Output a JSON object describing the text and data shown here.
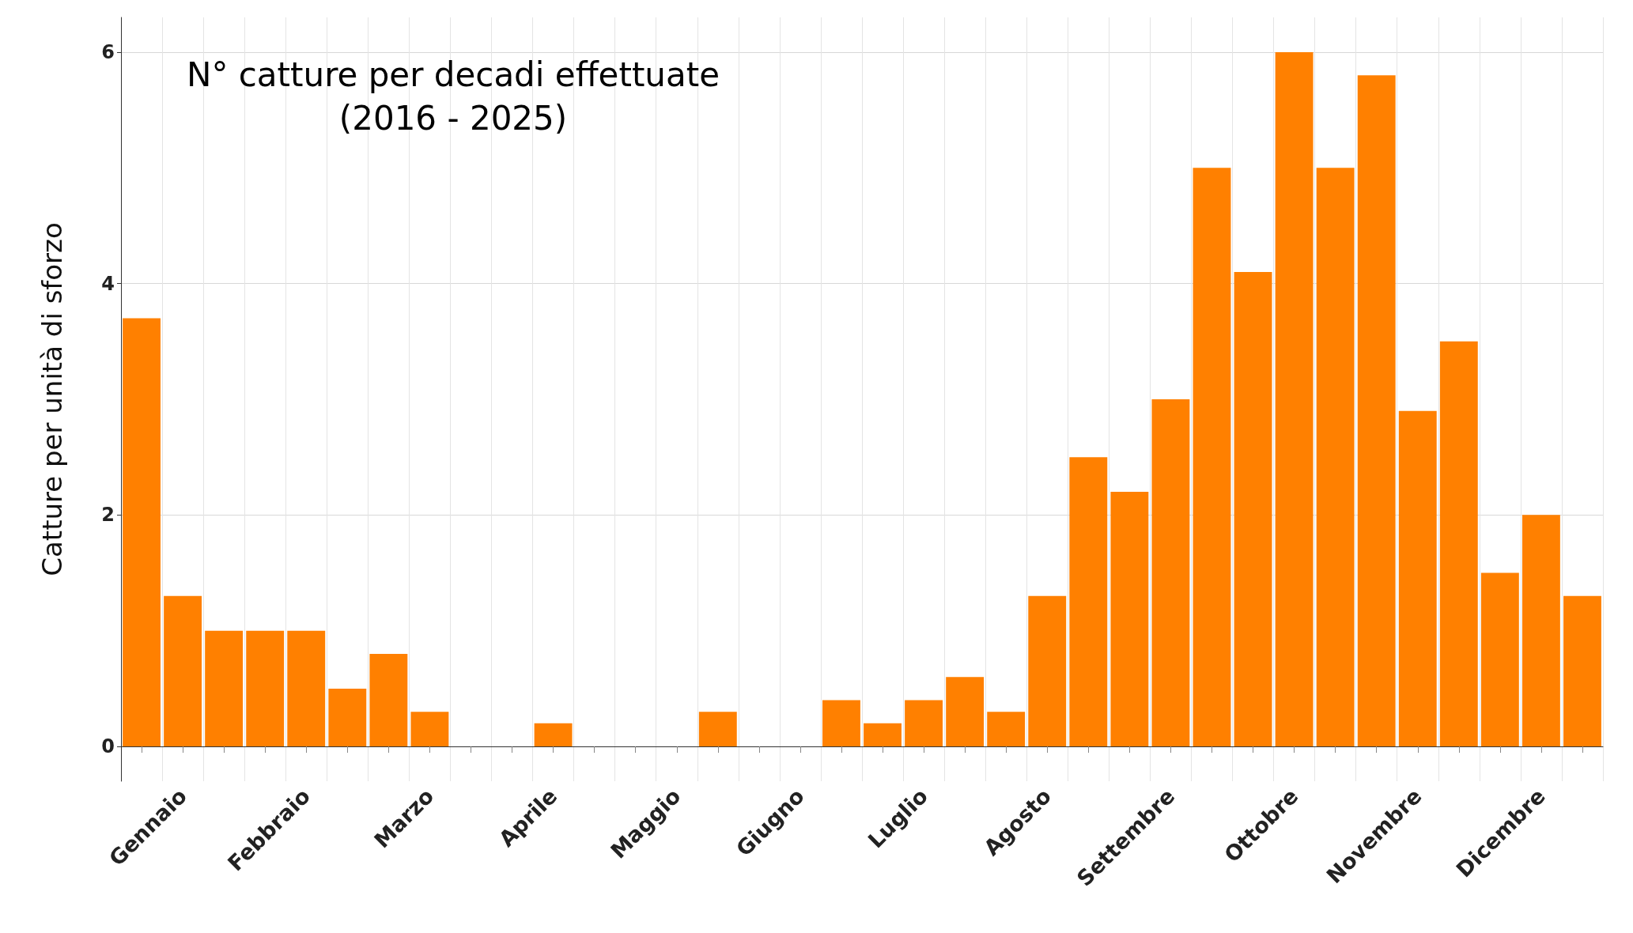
{
  "chart_data": {
    "type": "bar",
    "title": "N° catture per decadi effettuate",
    "subtitle": "(2016 - 2025)",
    "ylabel": "Catture per unità di sforzo",
    "categories": [
      "Gennaio",
      null,
      null,
      "Febbraio",
      null,
      null,
      "Marzo",
      null,
      null,
      "Aprile",
      null,
      null,
      "Maggio",
      null,
      null,
      "Giugno",
      null,
      null,
      "Luglio",
      null,
      null,
      "Agosto",
      null,
      null,
      "Settembre",
      null,
      null,
      "Ottobre",
      null,
      null,
      "Novembre",
      null,
      null,
      "Dicembre",
      null,
      null
    ],
    "values": [
      3.7,
      1.3,
      1.0,
      1.0,
      1.0,
      0.5,
      0.8,
      0.3,
      0,
      0,
      0.2,
      0,
      0,
      0,
      0.3,
      0,
      0,
      0.4,
      0.2,
      0.4,
      0.6,
      0.3,
      1.3,
      2.5,
      2.2,
      3.0,
      5.0,
      4.1,
      6.0,
      5.0,
      5.8,
      2.9,
      3.5,
      1.5,
      2.0,
      1.3
    ],
    "color": "#ff8000",
    "ylim": [
      -0.3,
      6.3
    ],
    "yticks": [
      0,
      2,
      4,
      6
    ],
    "grid": true
  }
}
